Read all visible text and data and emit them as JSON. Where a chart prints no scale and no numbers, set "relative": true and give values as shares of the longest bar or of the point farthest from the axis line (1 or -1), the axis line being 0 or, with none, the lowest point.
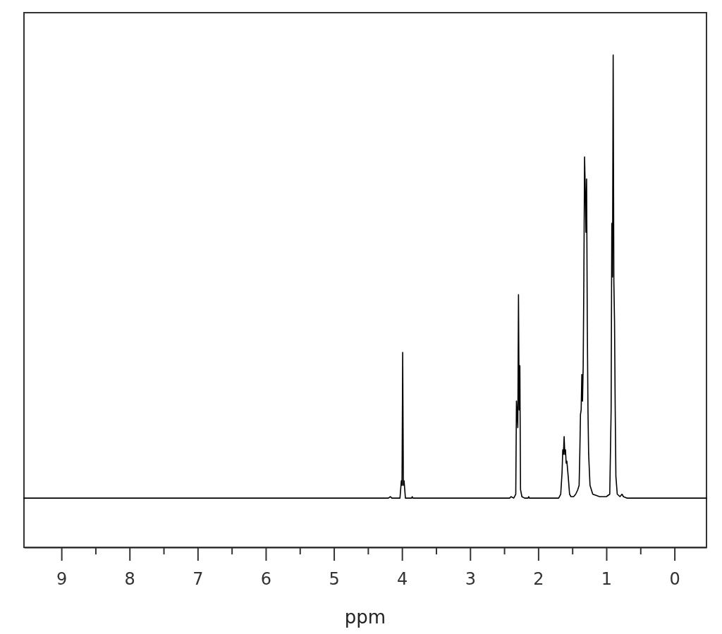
{
  "chart_data": {
    "type": "line",
    "relative": true,
    "xlabel": "ppm",
    "xlim": [
      9.55,
      -0.47
    ],
    "xticks": [
      9,
      {
        "value": 8.5,
        "label": null
      },
      8,
      {
        "value": 7.5,
        "label": null
      },
      7,
      {
        "value": 6.5,
        "label": null
      },
      6,
      {
        "value": 5.5,
        "label": null
      },
      5,
      {
        "value": 4.5,
        "label": null
      },
      4,
      {
        "value": 3.5,
        "label": null
      },
      3,
      {
        "value": 2.5,
        "label": null
      },
      2,
      {
        "value": 1.5,
        "label": null
      },
      1,
      {
        "value": 0.5,
        "label": null
      },
      0
    ],
    "tick_labels": "x",
    "x": [
      9.55,
      4.2,
      4.17,
      4.15,
      4.03,
      4.01,
      4.0,
      3.99,
      3.98,
      3.97,
      3.95,
      3.86,
      3.85,
      3.84,
      2.42,
      2.4,
      2.36,
      2.33,
      2.32,
      2.3,
      2.29,
      2.28,
      2.27,
      2.26,
      2.24,
      2.2,
      2.15,
      2.14,
      2.13,
      1.7,
      1.67,
      1.65,
      1.64,
      1.63,
      1.62,
      1.61,
      1.6,
      1.59,
      1.58,
      1.56,
      1.54,
      1.52,
      1.48,
      1.45,
      1.42,
      1.4,
      1.39,
      1.38,
      1.37,
      1.36,
      1.35,
      1.34,
      1.33,
      1.32,
      1.31,
      1.3,
      1.29,
      1.28,
      1.27,
      1.26,
      1.24,
      1.2,
      1.1,
      1.0,
      0.95,
      0.93,
      0.92,
      0.91,
      0.9,
      0.89,
      0.88,
      0.87,
      0.86,
      0.84,
      0.8,
      0.77,
      0.75,
      0.7,
      -0.47
    ],
    "series": [
      {
        "color": "#000000",
        "values": [
          0.1,
          0.1,
          0.103,
          0.1,
          0.1,
          0.135,
          0.126,
          0.396,
          0.126,
          0.135,
          0.1,
          0.1,
          0.103,
          0.1,
          0.1,
          0.103,
          0.1,
          0.108,
          0.297,
          0.243,
          0.513,
          0.279,
          0.369,
          0.117,
          0.103,
          0.1,
          0.1,
          0.103,
          0.1,
          0.1,
          0.108,
          0.153,
          0.198,
          0.189,
          0.225,
          0.189,
          0.198,
          0.171,
          0.175,
          0.144,
          0.108,
          0.103,
          0.103,
          0.108,
          0.117,
          0.126,
          0.189,
          0.27,
          0.279,
          0.351,
          0.297,
          0.369,
          0.549,
          0.793,
          0.73,
          0.64,
          0.748,
          0.459,
          0.279,
          0.189,
          0.126,
          0.108,
          0.103,
          0.103,
          0.108,
          0.279,
          0.658,
          0.549,
          1,
          0.54,
          0.459,
          0.279,
          0.144,
          0.108,
          0.103,
          0.108,
          0.103,
          0.1,
          0.1
        ]
      }
    ]
  }
}
